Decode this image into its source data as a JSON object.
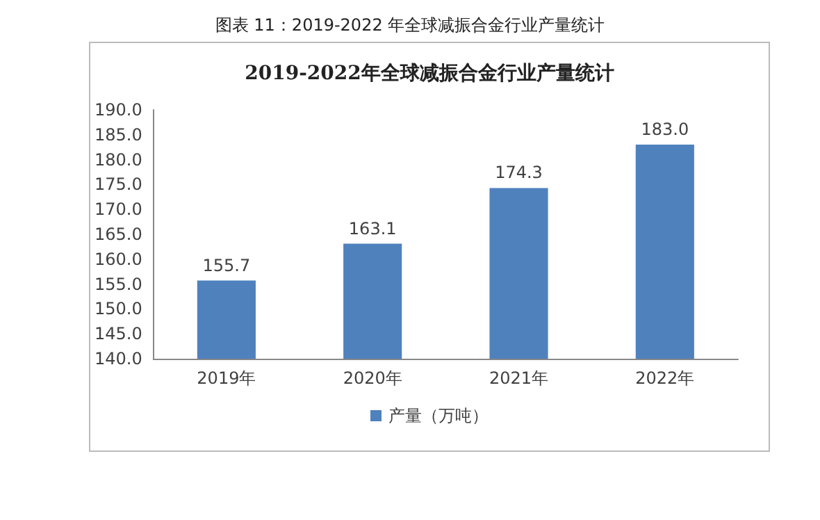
{
  "chart_data": {
    "type": "bar",
    "title": "2019-2022年全球减振合金行业产量统计",
    "annotations": [
      "图表 11：2019-2022 年全球减振合金行业产量统计"
    ],
    "categories": [
      "2019年",
      "2020年",
      "2021年",
      "2022年"
    ],
    "series": [
      {
        "name": "产量（万吨）",
        "color": "#4f81bd",
        "values": [
          155.7,
          163.1,
          174.3,
          183.0
        ]
      }
    ],
    "value_labels": [
      "155.7",
      "163.1",
      "174.3",
      "183.0"
    ],
    "ylim": [
      140,
      190
    ],
    "yticks": [
      {
        "value": 140,
        "label": "140.0"
      },
      {
        "value": 145,
        "label": "145.0"
      },
      {
        "value": 150,
        "label": "150.0"
      },
      {
        "value": 155,
        "label": "155.0"
      },
      {
        "value": 160,
        "label": "160.0"
      },
      {
        "value": 165,
        "label": "165.0"
      },
      {
        "value": 170,
        "label": "170.0"
      },
      {
        "value": 175,
        "label": "175.0"
      },
      {
        "value": 180,
        "label": "180.0"
      },
      {
        "value": 185,
        "label": "185.0"
      },
      {
        "value": 190,
        "label": "190.0"
      }
    ],
    "grid": false,
    "legend": "bottom"
  }
}
